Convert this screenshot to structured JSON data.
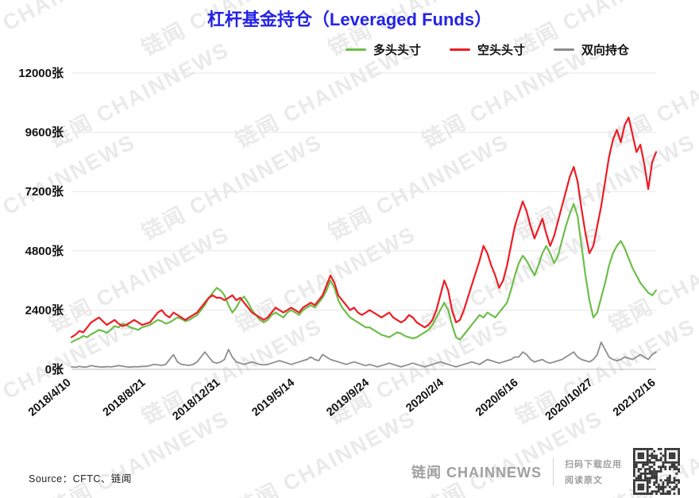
{
  "title": "杠杆基金持仓（Leveraged Funds）",
  "watermark_text": "链闻 CHAINNEWS",
  "source": "Source：CFTC、链闻",
  "footer": {
    "brand": "链闻 CHAINNEWS",
    "line1": "扫码下载应用",
    "line2": "阅读原文"
  },
  "colors": {
    "title": "#2323e6",
    "grid": "#e7e7e7",
    "axis": "#bbbbbb",
    "tick_text": "#111111"
  },
  "chart_data": {
    "type": "line",
    "title": "杠杆基金持仓（Leveraged Funds）",
    "xlabel": "",
    "ylabel": "",
    "ylim": [
      0,
      12000
    ],
    "grid": "horizontal",
    "legend_position": "top-right",
    "y_ticks": [
      0,
      2400,
      4800,
      7200,
      9600,
      12000
    ],
    "y_tick_suffix": "张",
    "x_tick_indices": [
      0,
      19,
      38,
      57,
      76,
      95,
      114,
      133,
      149
    ],
    "x_tick_labels": [
      "2018/4/10",
      "2018/8/21",
      "2018/12/31",
      "2019/5/14",
      "2019/9/24",
      "2020/2/4",
      "2020/6/16",
      "2020/10/27",
      "2021/2/16"
    ],
    "series": [
      {
        "name": "多头头寸",
        "color": "#6ebe4a",
        "values": [
          1100,
          1180,
          1250,
          1350,
          1300,
          1420,
          1500,
          1600,
          1550,
          1480,
          1600,
          1750,
          1700,
          1850,
          1800,
          1700,
          1650,
          1600,
          1700,
          1750,
          1800,
          1900,
          2000,
          1950,
          1850,
          1900,
          2000,
          2100,
          2050,
          1950,
          2000,
          2100,
          2200,
          2400,
          2600,
          2900,
          3100,
          3300,
          3200,
          3000,
          2600,
          2300,
          2500,
          2800,
          2950,
          2700,
          2400,
          2200,
          2000,
          1900,
          2000,
          2200,
          2300,
          2200,
          2100,
          2300,
          2400,
          2300,
          2200,
          2400,
          2500,
          2600,
          2500,
          2700,
          2900,
          3200,
          3600,
          3300,
          2800,
          2500,
          2300,
          2100,
          2000,
          1900,
          1800,
          1700,
          1700,
          1600,
          1500,
          1400,
          1350,
          1300,
          1400,
          1500,
          1450,
          1350,
          1300,
          1250,
          1300,
          1400,
          1500,
          1600,
          1800,
          2100,
          2400,
          2700,
          2400,
          1800,
          1300,
          1200,
          1400,
          1600,
          1800,
          2000,
          2200,
          2100,
          2300,
          2200,
          2100,
          2300,
          2500,
          2700,
          3200,
          3800,
          4300,
          4600,
          4400,
          4100,
          3800,
          4200,
          4700,
          5000,
          4700,
          4300,
          4600,
          5200,
          5800,
          6300,
          6700,
          6200,
          5000,
          3800,
          2800,
          2100,
          2300,
          2900,
          3500,
          4200,
          4700,
          5000,
          5200,
          4900,
          4500,
          4100,
          3800,
          3500,
          3300,
          3100,
          3000,
          3200
        ]
      },
      {
        "name": "空头头寸",
        "color": "#ed1c24",
        "values": [
          1300,
          1400,
          1550,
          1500,
          1700,
          1900,
          2000,
          2100,
          1950,
          1800,
          1900,
          2000,
          1850,
          1750,
          1800,
          1900,
          2000,
          1900,
          1800,
          1850,
          1900,
          2100,
          2300,
          2400,
          2200,
          2100,
          2300,
          2200,
          2100,
          2000,
          2100,
          2200,
          2300,
          2500,
          2700,
          2900,
          3000,
          2900,
          2900,
          2800,
          2900,
          3000,
          2800,
          2900,
          2700,
          2500,
          2300,
          2200,
          2100,
          2000,
          2100,
          2300,
          2500,
          2400,
          2300,
          2400,
          2500,
          2400,
          2300,
          2500,
          2600,
          2700,
          2600,
          2800,
          3000,
          3400,
          3800,
          3500,
          3000,
          2800,
          2600,
          2400,
          2500,
          2300,
          2200,
          2300,
          2400,
          2300,
          2200,
          2100,
          2200,
          2300,
          2100,
          2000,
          1900,
          2000,
          2200,
          2100,
          1900,
          1800,
          1700,
          1800,
          2000,
          2400,
          3000,
          3600,
          3200,
          2400,
          1900,
          2000,
          2400,
          2900,
          3400,
          3900,
          4400,
          5000,
          4700,
          4200,
          3800,
          3300,
          3600,
          4200,
          5000,
          5800,
          6300,
          6800,
          6400,
          5800,
          5300,
          5700,
          6100,
          5500,
          5000,
          5400,
          6000,
          6600,
          7200,
          7800,
          8200,
          7600,
          6500,
          5500,
          4700,
          5000,
          5800,
          6600,
          7600,
          8600,
          9300,
          9700,
          9200,
          9900,
          10200,
          9500,
          8800,
          9100,
          8300,
          7300,
          8400,
          8800
        ]
      },
      {
        "name": "双向持仓",
        "color": "#8d8d8d",
        "values": [
          100,
          80,
          120,
          90,
          100,
          150,
          120,
          100,
          90,
          110,
          100,
          120,
          150,
          130,
          100,
          90,
          110,
          100,
          120,
          120,
          150,
          200,
          180,
          160,
          200,
          400,
          600,
          300,
          200,
          180,
          160,
          200,
          300,
          500,
          700,
          500,
          300,
          250,
          300,
          400,
          800,
          500,
          300,
          250,
          200,
          250,
          300,
          250,
          200,
          180,
          200,
          250,
          300,
          350,
          300,
          250,
          200,
          250,
          300,
          350,
          400,
          500,
          400,
          350,
          600,
          500,
          400,
          350,
          300,
          250,
          200,
          250,
          300,
          250,
          200,
          150,
          200,
          150,
          100,
          150,
          200,
          250,
          200,
          150,
          100,
          150,
          200,
          250,
          200,
          150,
          100,
          150,
          200,
          250,
          300,
          250,
          200,
          150,
          100,
          150,
          200,
          250,
          300,
          250,
          200,
          300,
          400,
          350,
          300,
          250,
          300,
          350,
          400,
          500,
          500,
          700,
          600,
          400,
          300,
          350,
          400,
          300,
          250,
          300,
          350,
          400,
          500,
          600,
          700,
          500,
          400,
          350,
          300,
          400,
          600,
          1100,
          800,
          500,
          400,
          350,
          400,
          500,
          450,
          400,
          500,
          600,
          500,
          400,
          600,
          700
        ]
      }
    ]
  }
}
